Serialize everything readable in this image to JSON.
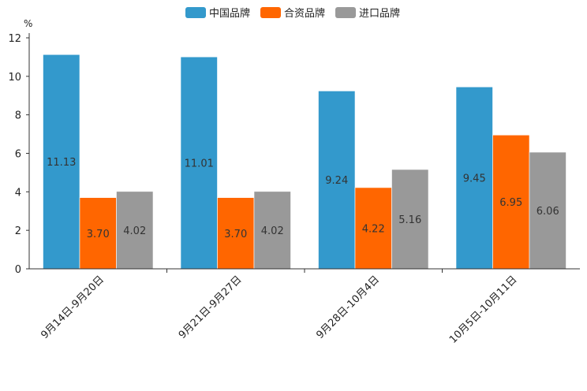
{
  "chart_data": {
    "type": "bar",
    "unit": "%",
    "categories": [
      "9月14日-9月20日",
      "9月21日-9月27日",
      "9月28日-10月4日",
      "10月5日-10月11日"
    ],
    "series": [
      {
        "name": "中国品牌",
        "color": "#3399cc",
        "values": [
          11.13,
          11.01,
          9.24,
          9.45
        ],
        "labels": [
          "11.13",
          "11.01",
          "9.24",
          "9.45"
        ]
      },
      {
        "name": "合资品牌",
        "color": "#ff6600",
        "values": [
          3.7,
          3.7,
          4.22,
          6.95
        ],
        "labels": [
          "3.70",
          "3.70",
          "4.22",
          "6.95"
        ]
      },
      {
        "name": "进口品牌",
        "color": "#999999",
        "values": [
          4.02,
          4.02,
          5.16,
          6.06
        ],
        "labels": [
          "4.02",
          "4.02",
          "5.16",
          "6.06"
        ]
      }
    ],
    "yticks": [
      "0",
      "2",
      "4",
      "6",
      "8",
      "10",
      "12"
    ],
    "ylim": [
      0,
      12
    ],
    "legend_position": "top-center",
    "grid": false
  }
}
